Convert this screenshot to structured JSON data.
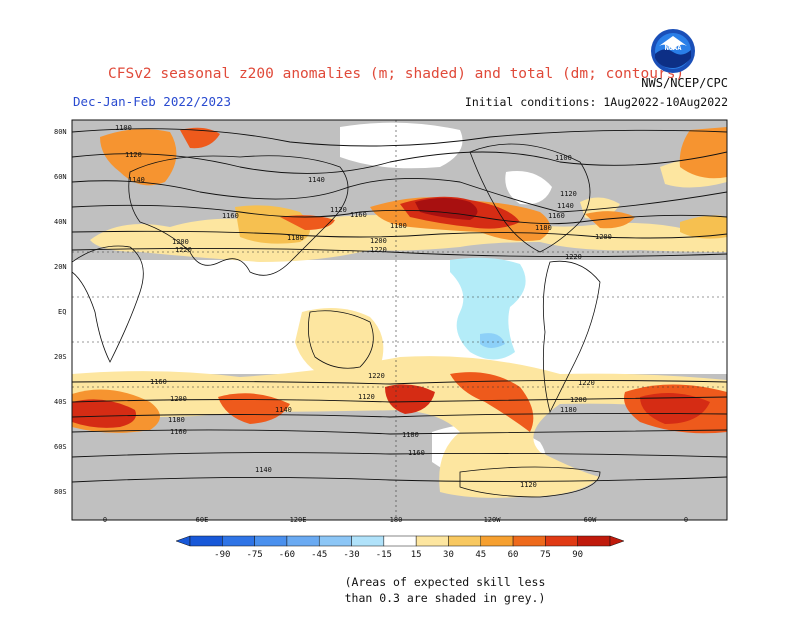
{
  "title": "CFSv2 seasonal z200 anomalies (m; shaded) and total (dm; contours)",
  "season": "Dec-Jan-Feb 2022/2023",
  "initial_conditions": "Initial conditions: 1Aug2022-10Aug2022",
  "agency": "NWS/NCEP/CPC",
  "logo_text": "NOAA",
  "skill_note": [
    "(Areas of expected skill less",
    "than 0.3 are shaded in grey.)"
  ],
  "colors": {
    "low_skill_grey": "#c0c0c0",
    "title_red": "#e04a3a",
    "season_blue": "#2a4bd0",
    "neg_15_30": "#b4ecf8",
    "neg_30_45": "#8dd0f8",
    "neg_45_60": "#5aaaf0",
    "pos_15_30": "#fde6a0",
    "pos_30_45": "#f6c050",
    "pos_45_60": "#f69430",
    "pos_60_75": "#ee5a1c",
    "pos_75_90": "#d52c14",
    "pos_90": "#a81010"
  },
  "colorbar": {
    "ticks": [
      "-90",
      "-75",
      "-60",
      "-45",
      "-30",
      "-15",
      "15",
      "30",
      "45",
      "60",
      "75",
      "90"
    ],
    "colors": [
      "#1858d8",
      "#2f74e6",
      "#4a90ee",
      "#6aaaf2",
      "#8cc6f6",
      "#b0e2fa",
      "#ffffff",
      "#fde6a0",
      "#f8c860",
      "#f6a030",
      "#ee6a1c",
      "#e03a14",
      "#c01a0c"
    ]
  },
  "map": {
    "lon_labels": [
      "0",
      "60E",
      "120E",
      "180",
      "120W",
      "60W",
      "0"
    ],
    "lat_labels": [
      "80N",
      "60N",
      "40N",
      "20N",
      "EQ",
      "20S",
      "40S",
      "60S",
      "80S"
    ],
    "contour_labels": [
      "1100",
      "1120",
      "1140",
      "1160",
      "1180",
      "1200",
      "1220",
      "1180",
      "1160",
      "1140",
      "1120",
      "1100",
      "1120",
      "1140",
      "1160",
      "1180",
      "1200",
      "1220",
      "1220",
      "1200",
      "1180",
      "1160",
      "1140",
      "1120",
      "1220",
      "1200",
      "1180",
      "1160",
      "1140",
      "1120",
      "1180",
      "1200",
      "1220",
      "1140",
      "1160",
      "1180",
      "1200",
      "1220",
      "1160",
      "1140"
    ]
  }
}
